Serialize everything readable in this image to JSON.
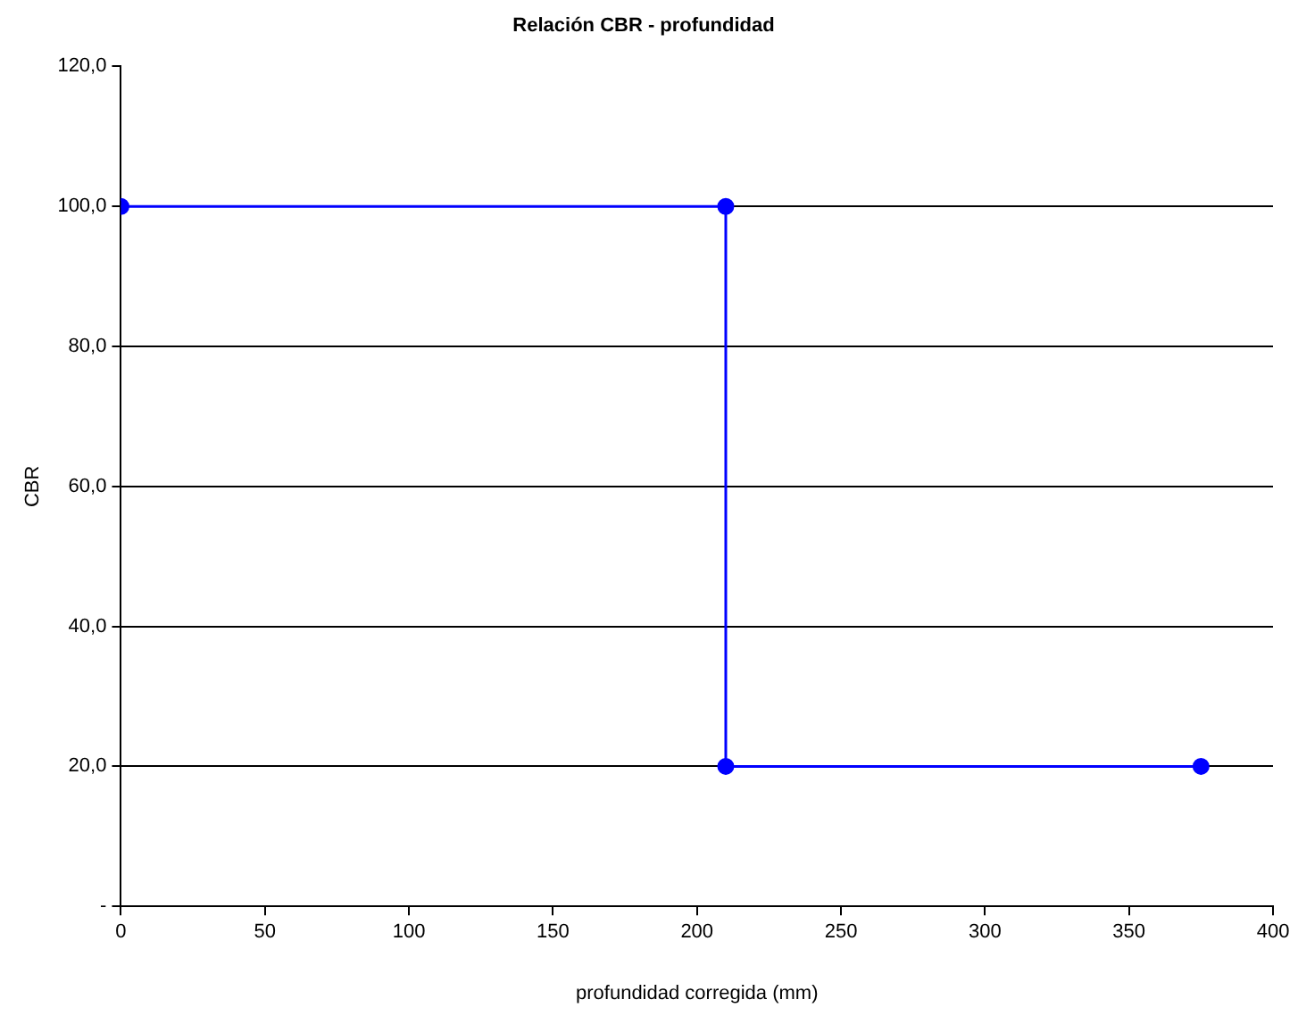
{
  "chart_data": {
    "type": "line",
    "title": "Relación CBR - profundidad",
    "xlabel": "profundidad corregida (mm)",
    "ylabel": "CBR",
    "series": [
      {
        "color": "#0000ff",
        "x": [
          0,
          210,
          210,
          375
        ],
        "values": [
          100,
          100,
          20,
          20
        ]
      }
    ],
    "xlim": [
      0,
      400
    ],
    "xticks": [
      0,
      50,
      100,
      150,
      200,
      250,
      300,
      350,
      400
    ],
    "ylim": [
      0,
      120
    ],
    "yticks": [
      {
        "value": 0,
        "label": "-"
      },
      {
        "value": 20,
        "label": "20,0"
      },
      {
        "value": 40,
        "label": "40,0"
      },
      {
        "value": 60,
        "label": "60,0"
      },
      {
        "value": 80,
        "label": "80,0"
      },
      {
        "value": 100,
        "label": "100,0"
      },
      {
        "value": 120,
        "label": "120,0"
      }
    ],
    "grid": "y",
    "legend": false,
    "marker": "circle",
    "line_style": "solid"
  }
}
